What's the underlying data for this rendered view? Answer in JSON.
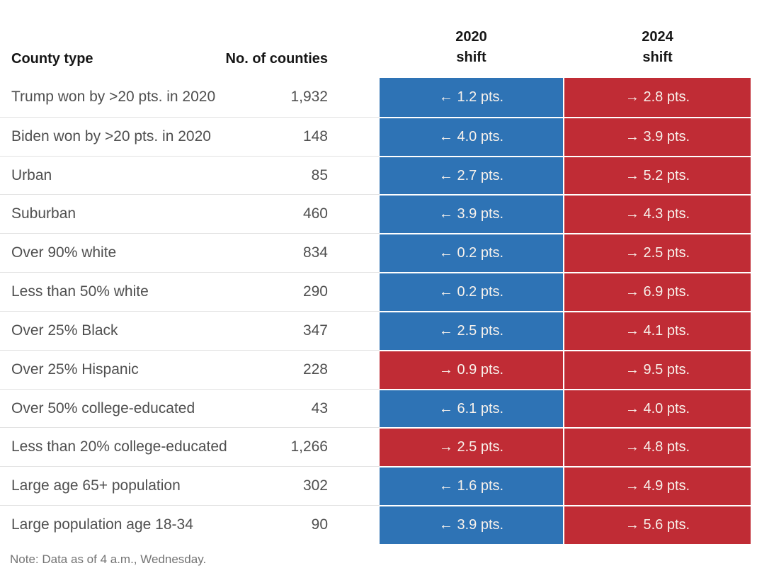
{
  "table": {
    "headers": {
      "county_type": "County type",
      "no_of_counties": "No. of counties",
      "shift_2020_line1": "2020",
      "shift_2020_line2": "shift",
      "shift_2024_line1": "2024",
      "shift_2024_line2": "shift"
    },
    "rows": [
      {
        "label": "Trump won by >20 pts. in 2020",
        "counties": "1,932",
        "shift_2020": {
          "text": "← 1.2 pts.",
          "party": "dem"
        },
        "shift_2024": {
          "text": "→ 2.8 pts.",
          "party": "rep"
        }
      },
      {
        "label": "Biden won by >20 pts. in 2020",
        "counties": "148",
        "shift_2020": {
          "text": "← 4.0 pts.",
          "party": "dem"
        },
        "shift_2024": {
          "text": "→ 3.9 pts.",
          "party": "rep"
        }
      },
      {
        "label": "Urban",
        "counties": "85",
        "shift_2020": {
          "text": "← 2.7 pts.",
          "party": "dem"
        },
        "shift_2024": {
          "text": "→ 5.2 pts.",
          "party": "rep"
        }
      },
      {
        "label": "Suburban",
        "counties": "460",
        "shift_2020": {
          "text": "← 3.9 pts.",
          "party": "dem"
        },
        "shift_2024": {
          "text": "→ 4.3 pts.",
          "party": "rep"
        }
      },
      {
        "label": "Over 90% white",
        "counties": "834",
        "shift_2020": {
          "text": "← 0.2 pts.",
          "party": "dem"
        },
        "shift_2024": {
          "text": "→ 2.5 pts.",
          "party": "rep"
        }
      },
      {
        "label": "Less than 50% white",
        "counties": "290",
        "shift_2020": {
          "text": "← 0.2 pts.",
          "party": "dem"
        },
        "shift_2024": {
          "text": "→ 6.9 pts.",
          "party": "rep"
        }
      },
      {
        "label": "Over 25% Black",
        "counties": "347",
        "shift_2020": {
          "text": "← 2.5 pts.",
          "party": "dem"
        },
        "shift_2024": {
          "text": "→ 4.1 pts.",
          "party": "rep"
        }
      },
      {
        "label": "Over 25% Hispanic",
        "counties": "228",
        "shift_2020": {
          "text": "→ 0.9 pts.",
          "party": "rep"
        },
        "shift_2024": {
          "text": "→ 9.5 pts.",
          "party": "rep"
        }
      },
      {
        "label": "Over 50% college-educated",
        "counties": "43",
        "shift_2020": {
          "text": "← 6.1 pts.",
          "party": "dem"
        },
        "shift_2024": {
          "text": "→ 4.0 pts.",
          "party": "rep"
        }
      },
      {
        "label": "Less than 20% college-educated",
        "counties": "1,266",
        "shift_2020": {
          "text": "→ 2.5 pts.",
          "party": "rep"
        },
        "shift_2024": {
          "text": "→ 4.8 pts.",
          "party": "rep"
        }
      },
      {
        "label": "Large age 65+ population",
        "counties": "302",
        "shift_2020": {
          "text": "← 1.6 pts.",
          "party": "dem"
        },
        "shift_2024": {
          "text": "→ 4.9 pts.",
          "party": "rep"
        }
      },
      {
        "label": "Large population age 18-34",
        "counties": "90",
        "shift_2020": {
          "text": "← 3.9 pts.",
          "party": "dem"
        },
        "shift_2024": {
          "text": "→ 5.6 pts.",
          "party": "rep"
        }
      }
    ]
  },
  "note": "Note: Data as of 4 a.m., Wednesday.",
  "colors": {
    "dem_shift_blue": "#2e73b5",
    "rep_shift_red": "#c02c35",
    "cell_text": "#f8f2ec",
    "header_text": "#161616",
    "body_text": "#4f4f4f",
    "note_text": "#737373",
    "divider": "#e2e2e2"
  },
  "chart_data": {
    "type": "table",
    "columns": [
      "County type",
      "No. of counties",
      "2020 shift (pts.)",
      "2024 shift (pts.)"
    ],
    "value_encoding": "negative = leftward/Democratic shift (← blue cell), positive = rightward/Republican shift (→ red cell)",
    "rows": [
      [
        "Trump won by >20 pts. in 2020",
        1932,
        -1.2,
        2.8
      ],
      [
        "Biden won by >20 pts. in 2020",
        148,
        -4.0,
        3.9
      ],
      [
        "Urban",
        85,
        -2.7,
        5.2
      ],
      [
        "Suburban",
        460,
        -3.9,
        4.3
      ],
      [
        "Over 90% white",
        834,
        -0.2,
        2.5
      ],
      [
        "Less than 50% white",
        290,
        -0.2,
        6.9
      ],
      [
        "Over 25% Black",
        347,
        -2.5,
        4.1
      ],
      [
        "Over 25% Hispanic",
        228,
        0.9,
        9.5
      ],
      [
        "Over 50% college-educated",
        43,
        -6.1,
        4.0
      ],
      [
        "Less than 20% college-educated",
        1266,
        2.5,
        4.8
      ],
      [
        "Large age 65+ population",
        302,
        -1.6,
        4.9
      ],
      [
        "Large population age 18-34",
        90,
        -3.9,
        5.6
      ]
    ],
    "note": "Note: Data as of 4 a.m., Wednesday."
  }
}
